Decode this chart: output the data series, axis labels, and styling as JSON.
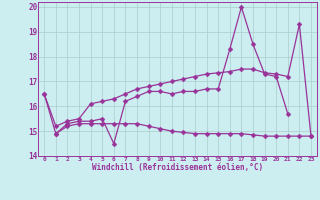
{
  "bg_color": "#cceef0",
  "line_color": "#993399",
  "grid_color": "#aacccc",
  "xlabel": "Windchill (Refroidissement éolien,°C)",
  "xlim": [
    -0.5,
    23.5
  ],
  "ylim": [
    14.0,
    20.2
  ],
  "yticks": [
    14,
    15,
    16,
    17,
    18,
    19,
    20
  ],
  "xticks": [
    0,
    1,
    2,
    3,
    4,
    5,
    6,
    7,
    8,
    9,
    10,
    11,
    12,
    13,
    14,
    15,
    16,
    17,
    18,
    19,
    20,
    21,
    22,
    23
  ],
  "line1_x": [
    0,
    1,
    2,
    3,
    4,
    5,
    6,
    7,
    8,
    9,
    10,
    11,
    12,
    13,
    14,
    15,
    16,
    17,
    18,
    19,
    20,
    21
  ],
  "line1_y": [
    16.5,
    14.9,
    15.3,
    15.4,
    15.4,
    15.5,
    14.5,
    16.2,
    16.4,
    16.6,
    16.6,
    16.5,
    16.6,
    16.6,
    16.7,
    16.7,
    18.3,
    20.0,
    18.5,
    17.3,
    17.2,
    15.7
  ],
  "line2_x": [
    0,
    1,
    2,
    3,
    4,
    5,
    6,
    7,
    8,
    9,
    10,
    11,
    12,
    13,
    14,
    15,
    16,
    17,
    18,
    19,
    20,
    21,
    22,
    23
  ],
  "line2_y": [
    16.5,
    15.2,
    15.4,
    15.5,
    16.1,
    16.2,
    16.3,
    16.5,
    16.7,
    16.8,
    16.9,
    17.0,
    17.1,
    17.2,
    17.3,
    17.35,
    17.4,
    17.5,
    17.5,
    17.35,
    17.3,
    17.2,
    19.3,
    14.8
  ],
  "line3_x": [
    1,
    2,
    3,
    4,
    5,
    6,
    7,
    8,
    9,
    10,
    11,
    12,
    13,
    14,
    15,
    16,
    17,
    18,
    19,
    20,
    21,
    22,
    23
  ],
  "line3_y": [
    14.9,
    15.2,
    15.3,
    15.3,
    15.3,
    15.3,
    15.3,
    15.3,
    15.2,
    15.1,
    15.0,
    14.95,
    14.9,
    14.9,
    14.9,
    14.9,
    14.9,
    14.85,
    14.8,
    14.8,
    14.8,
    14.8,
    14.8
  ],
  "markersize": 2.5,
  "linewidth": 0.9
}
